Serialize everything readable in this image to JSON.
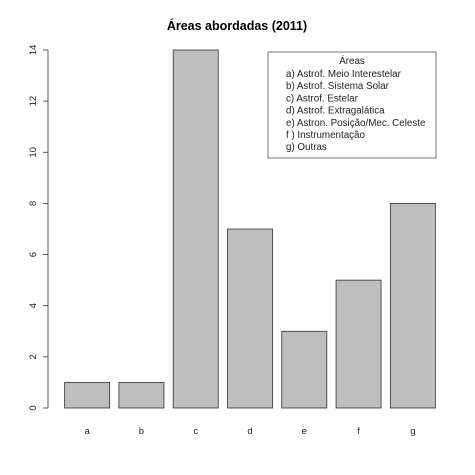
{
  "chart_data": {
    "type": "bar",
    "title": "Áreas abordadas (2011)",
    "categories": [
      "a",
      "b",
      "c",
      "d",
      "e",
      "f",
      "g"
    ],
    "values": [
      1,
      1,
      14,
      7,
      3,
      5,
      8
    ],
    "ylim": [
      0,
      14
    ],
    "yticks": [
      0,
      2,
      4,
      6,
      8,
      10,
      12,
      14
    ],
    "grid": false,
    "bar_color": "#bebebe",
    "bar_edge_color": "#333333",
    "legend": {
      "placement": "top-right",
      "title": "Áreas",
      "entries": [
        "a) Astrof. Meio Interestelar",
        "b) Astrof. Sistema Solar",
        "c) Astrof. Estelar",
        "d) Astrof. Extragalática",
        "e) Astron. Posição/Mec. Celeste",
        "f ) Instrumentação",
        "g) Outras"
      ]
    }
  }
}
